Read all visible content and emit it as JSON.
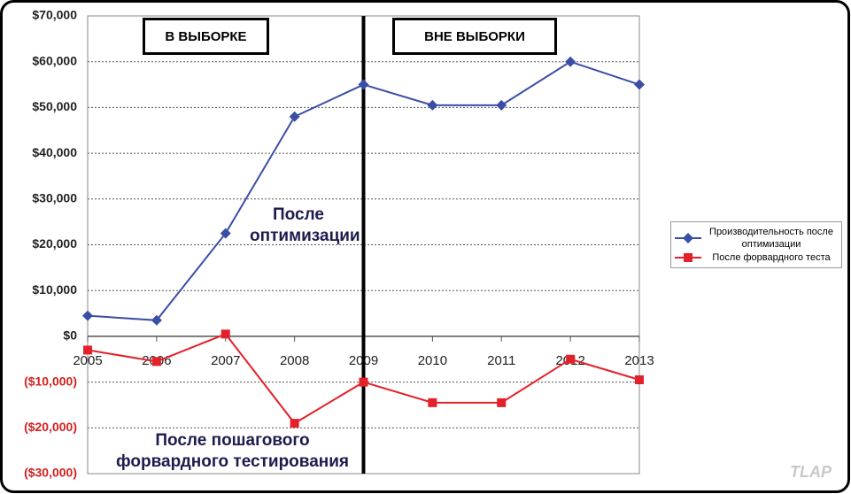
{
  "chart_data": {
    "type": "line",
    "categories": [
      "2005",
      "2006",
      "2007",
      "2008",
      "2009",
      "2010",
      "2011",
      "2012",
      "2013"
    ],
    "series": [
      {
        "name": "Производительность после оптимизации",
        "color": "#3b4ea6",
        "marker": "diamond",
        "values": [
          4500,
          3500,
          22500,
          48000,
          55000,
          50500,
          50500,
          60000,
          55000
        ]
      },
      {
        "name": "После форвардного теста",
        "color": "#e4202a",
        "marker": "square",
        "values": [
          -3000,
          -5500,
          500,
          -19000,
          -10000,
          -14500,
          -14500,
          -5000,
          -9500
        ]
      }
    ],
    "ylim": [
      -30000,
      70000
    ],
    "yticks": [
      {
        "value": -30000,
        "label": "($30,000)"
      },
      {
        "value": -20000,
        "label": "($20,000)"
      },
      {
        "value": -10000,
        "label": "($10,000)"
      },
      {
        "value": 0,
        "label": "$0"
      },
      {
        "value": 10000,
        "label": "$10,000"
      },
      {
        "value": 20000,
        "label": "$20,000"
      },
      {
        "value": 30000,
        "label": "$30,000"
      },
      {
        "value": 40000,
        "label": "$40,000"
      },
      {
        "value": 50000,
        "label": "$50,000"
      },
      {
        "value": 60000,
        "label": "$60,000"
      },
      {
        "value": 70000,
        "label": "$70,000"
      }
    ],
    "grid": true,
    "legend": "right",
    "regions": [
      "В ВЫБОРКЕ",
      "ВНЕ ВЫБОРКИ"
    ],
    "annotations": [
      "После оптимизации",
      "После пошагового форвардного тестирования"
    ],
    "watermark": "TLAP"
  }
}
